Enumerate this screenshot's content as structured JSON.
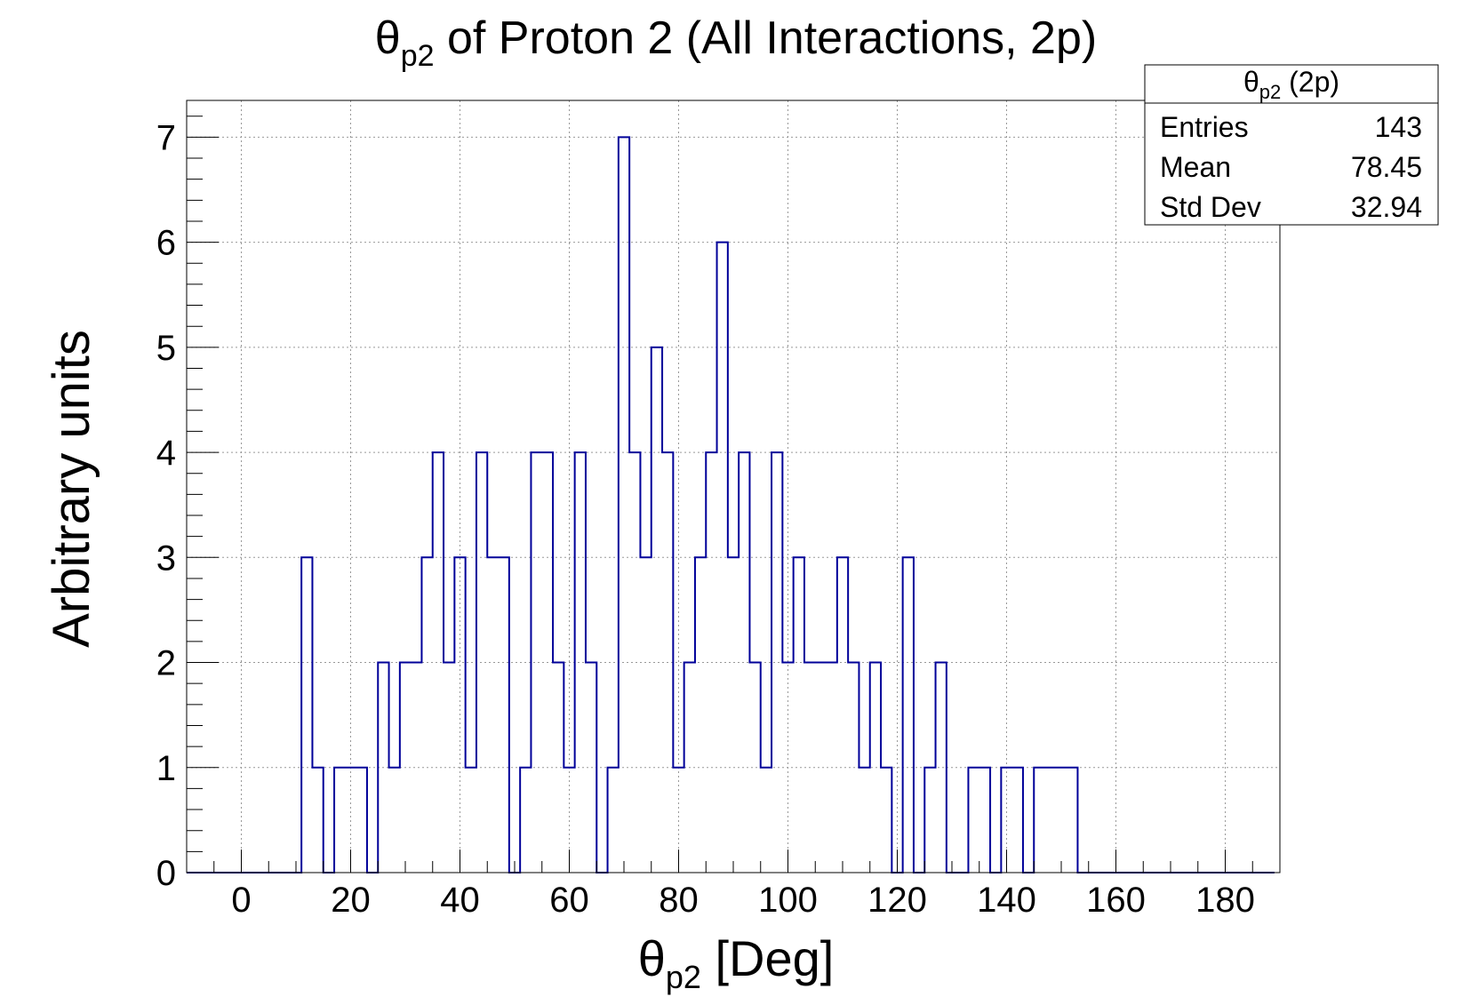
{
  "chart_data": {
    "type": "bar",
    "title_main": "θ",
    "title_sub": "p2",
    "title_rest": " of Proton 2 (All Interactions, 2p)",
    "xlabel_main": "θ",
    "xlabel_sub": "p2",
    "xlabel_rest": " [Deg]",
    "ylabel": "Arbitrary units",
    "xlim": [
      -10,
      190
    ],
    "ylim": [
      0,
      7.35
    ],
    "bin_width": 2,
    "x_ticks": [
      0,
      20,
      40,
      60,
      80,
      100,
      120,
      140,
      160,
      180
    ],
    "y_ticks": [
      0,
      1,
      2,
      3,
      4,
      5,
      6,
      7
    ],
    "grid": true,
    "line_color": "#000099",
    "bin_edges_start": -5,
    "values": [
      0,
      0,
      0,
      0,
      0,
      0,
      0,
      0,
      3,
      1,
      0,
      1,
      1,
      1,
      0,
      2,
      1,
      2,
      2,
      3,
      4,
      2,
      3,
      1,
      4,
      3,
      3,
      0,
      1,
      4,
      4,
      2,
      1,
      4,
      2,
      0,
      1,
      7,
      4,
      3,
      5,
      4,
      1,
      2,
      3,
      4,
      6,
      3,
      4,
      2,
      1,
      4,
      2,
      3,
      2,
      2,
      2,
      3,
      2,
      1,
      2,
      1,
      0,
      3,
      0,
      1,
      2,
      0,
      0,
      1,
      1,
      0,
      1,
      1,
      0,
      1,
      1,
      1,
      1,
      0,
      0,
      0,
      0,
      0,
      0,
      0,
      0,
      0,
      0,
      0,
      0,
      0,
      0,
      0,
      0,
      0,
      0
    ],
    "stats": {
      "title_main": "θ",
      "title_sub": "p2",
      "title_rest": " (2p)",
      "entries_label": "Entries",
      "entries_value": "143",
      "mean_label": "Mean",
      "mean_value": "78.45",
      "stddev_label": "Std Dev",
      "stddev_value": "32.94"
    }
  }
}
